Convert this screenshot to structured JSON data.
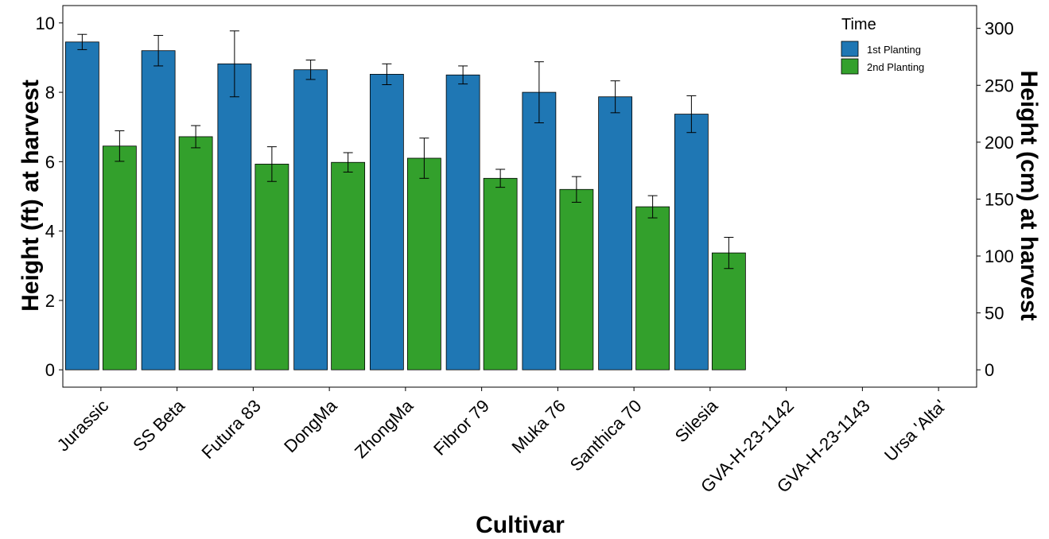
{
  "chart_data": {
    "type": "bar",
    "xlabel": "Cultivar",
    "ylabel": "Height (ft) at harvest",
    "ylabel_right": "Height (cm) at harvest",
    "ylim": [
      -0.5,
      10.5
    ],
    "yticks": [
      0,
      2,
      4,
      6,
      8,
      10
    ],
    "yticks_right": [
      0,
      50,
      100,
      150,
      200,
      250,
      300
    ],
    "ft_to_cm": 30.48,
    "categories": [
      "Jurassic",
      "SS Beta",
      "Futura 83",
      "DongMa",
      "ZhongMa",
      "Fibror 79",
      "Muka 76",
      "Santhica 70",
      "Silesia",
      "GVA-H-23-1142",
      "GVA-H-23-1143",
      "Ursa 'Alta'"
    ],
    "legend_title": "Time",
    "legend_position": "top-right",
    "series": [
      {
        "name": "1st Planting",
        "color": "#1f77b4",
        "values": [
          9.45,
          9.2,
          8.82,
          8.65,
          8.52,
          8.5,
          8.0,
          7.87,
          7.37,
          null,
          null,
          null
        ],
        "error": [
          0.22,
          0.44,
          0.95,
          0.28,
          0.3,
          0.26,
          0.88,
          0.46,
          0.53,
          null,
          null,
          null
        ]
      },
      {
        "name": "2nd Planting",
        "color": "#33a02c",
        "values": [
          6.45,
          6.72,
          5.93,
          5.98,
          6.1,
          5.52,
          5.2,
          4.7,
          3.37,
          null,
          null,
          null
        ],
        "error": [
          0.44,
          0.32,
          0.5,
          0.28,
          0.58,
          0.26,
          0.37,
          0.32,
          0.45,
          null,
          null,
          null
        ]
      }
    ],
    "grid": false
  }
}
